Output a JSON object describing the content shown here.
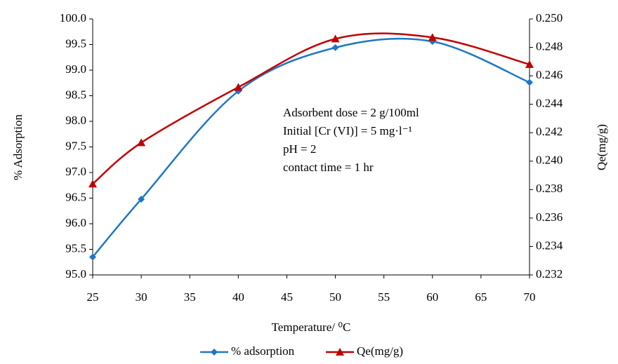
{
  "chart_data": {
    "type": "line",
    "x": [
      25,
      30,
      40,
      50,
      60,
      70
    ],
    "xlim": [
      25,
      70
    ],
    "xticks": [
      25,
      30,
      35,
      40,
      45,
      50,
      55,
      60,
      65,
      70
    ],
    "xlabel": "Temperature/ ⁰C",
    "ylabel": "% Adsorption",
    "y2label": "Qe(mg/g)",
    "ylim": [
      95,
      100
    ],
    "yticks": [
      {
        "value": 95,
        "label": "95.0"
      },
      95.5,
      {
        "value": 96,
        "label": "96.0"
      },
      96.5,
      {
        "value": 97,
        "label": "97.0"
      },
      97.5,
      {
        "value": 98,
        "label": "98.0"
      },
      98.5,
      {
        "value": 99,
        "label": "99.0"
      },
      99.5,
      {
        "value": 100,
        "label": "100.0"
      }
    ],
    "y2lim": [
      0.232,
      0.25
    ],
    "y2ticks": [
      0.232,
      0.234,
      0.236,
      0.238,
      {
        "value": 0.24,
        "label": "0.240"
      },
      0.242,
      0.244,
      0.246,
      0.248,
      {
        "value": 0.25,
        "label": "0.250"
      }
    ],
    "annotations": [
      "Adsorbent dose = 2 g/100ml",
      "Initial [Cr (VI)] = 5 mg·l⁻¹",
      "pH = 2",
      "contact time = 1 hr"
    ],
    "legend": "bottom",
    "series": [
      {
        "name": "% adsorption",
        "color": "#1f77c4",
        "marker": "diamond",
        "values": [
          95.35,
          96.48,
          98.59,
          99.44,
          99.56,
          98.76
        ]
      },
      {
        "name": "Qe(mg/g)",
        "color": "#c00000",
        "marker": "triangle",
        "axis": "y2",
        "values": [
          0.2384,
          0.2413,
          0.2452,
          0.2486,
          0.2487,
          0.2468
        ]
      }
    ]
  }
}
